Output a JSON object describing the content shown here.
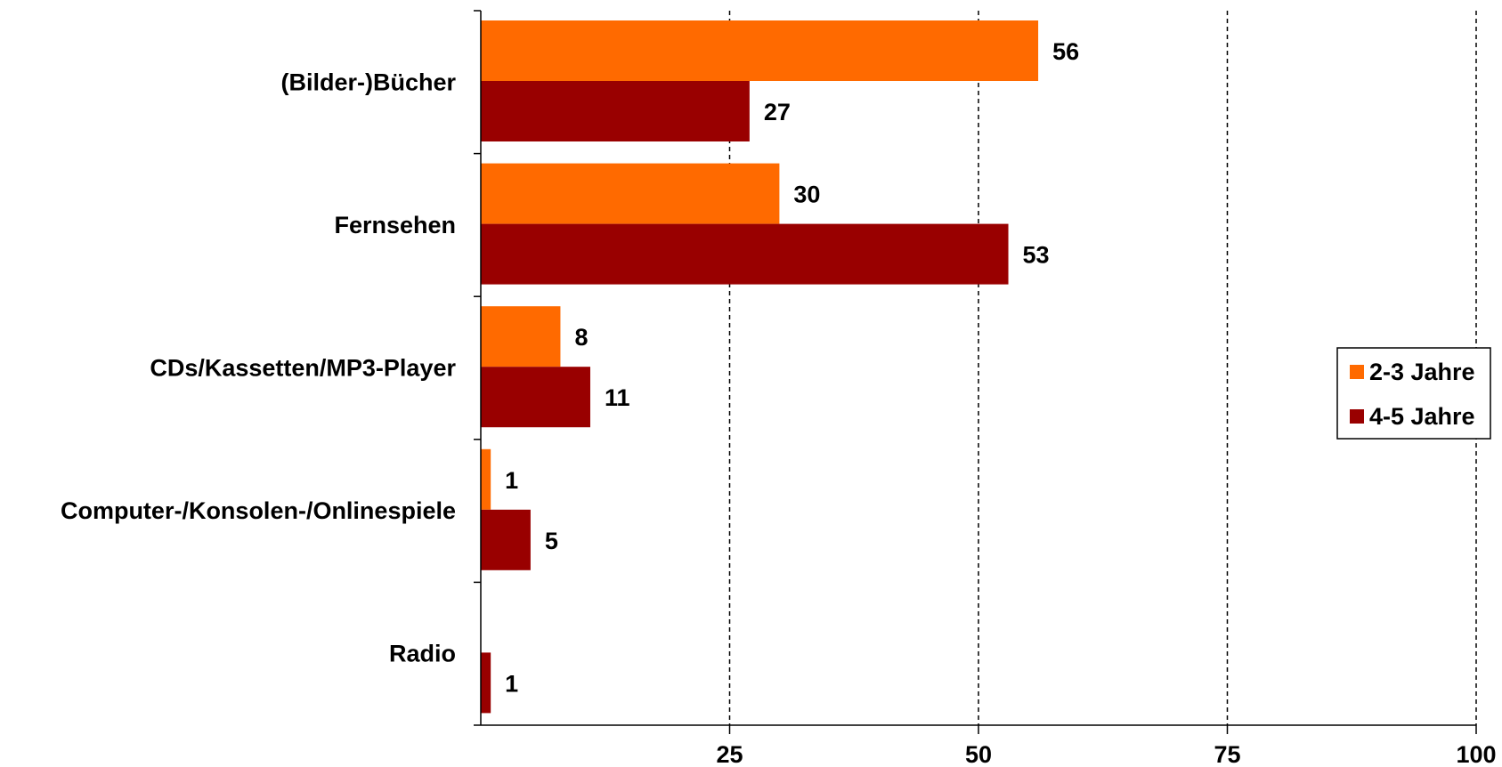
{
  "chart_data": {
    "type": "bar",
    "orientation": "horizontal",
    "categories": [
      "(Bilder-)Bücher",
      "Fernsehen",
      "CDs/Kassetten/MP3-Player",
      "Computer-/Konsolen-/Onlinespiele",
      "Radio"
    ],
    "series": [
      {
        "name": "2-3 Jahre",
        "color": "#ff6a00",
        "values": [
          56,
          30,
          8,
          1,
          null
        ],
        "labels": [
          "56",
          "30",
          "8",
          "1",
          ""
        ]
      },
      {
        "name": "4-5 Jahre",
        "color": "#990000",
        "values": [
          27,
          53,
          11,
          5,
          1
        ],
        "labels": [
          "27",
          "53",
          "11",
          "5",
          "1"
        ]
      }
    ],
    "xlim": [
      0,
      100
    ],
    "xticks": [
      25,
      50,
      75,
      100
    ],
    "xtick_labels": [
      "25",
      "50",
      "75",
      "100"
    ],
    "grid": "vertical dashed",
    "legend": "right"
  }
}
